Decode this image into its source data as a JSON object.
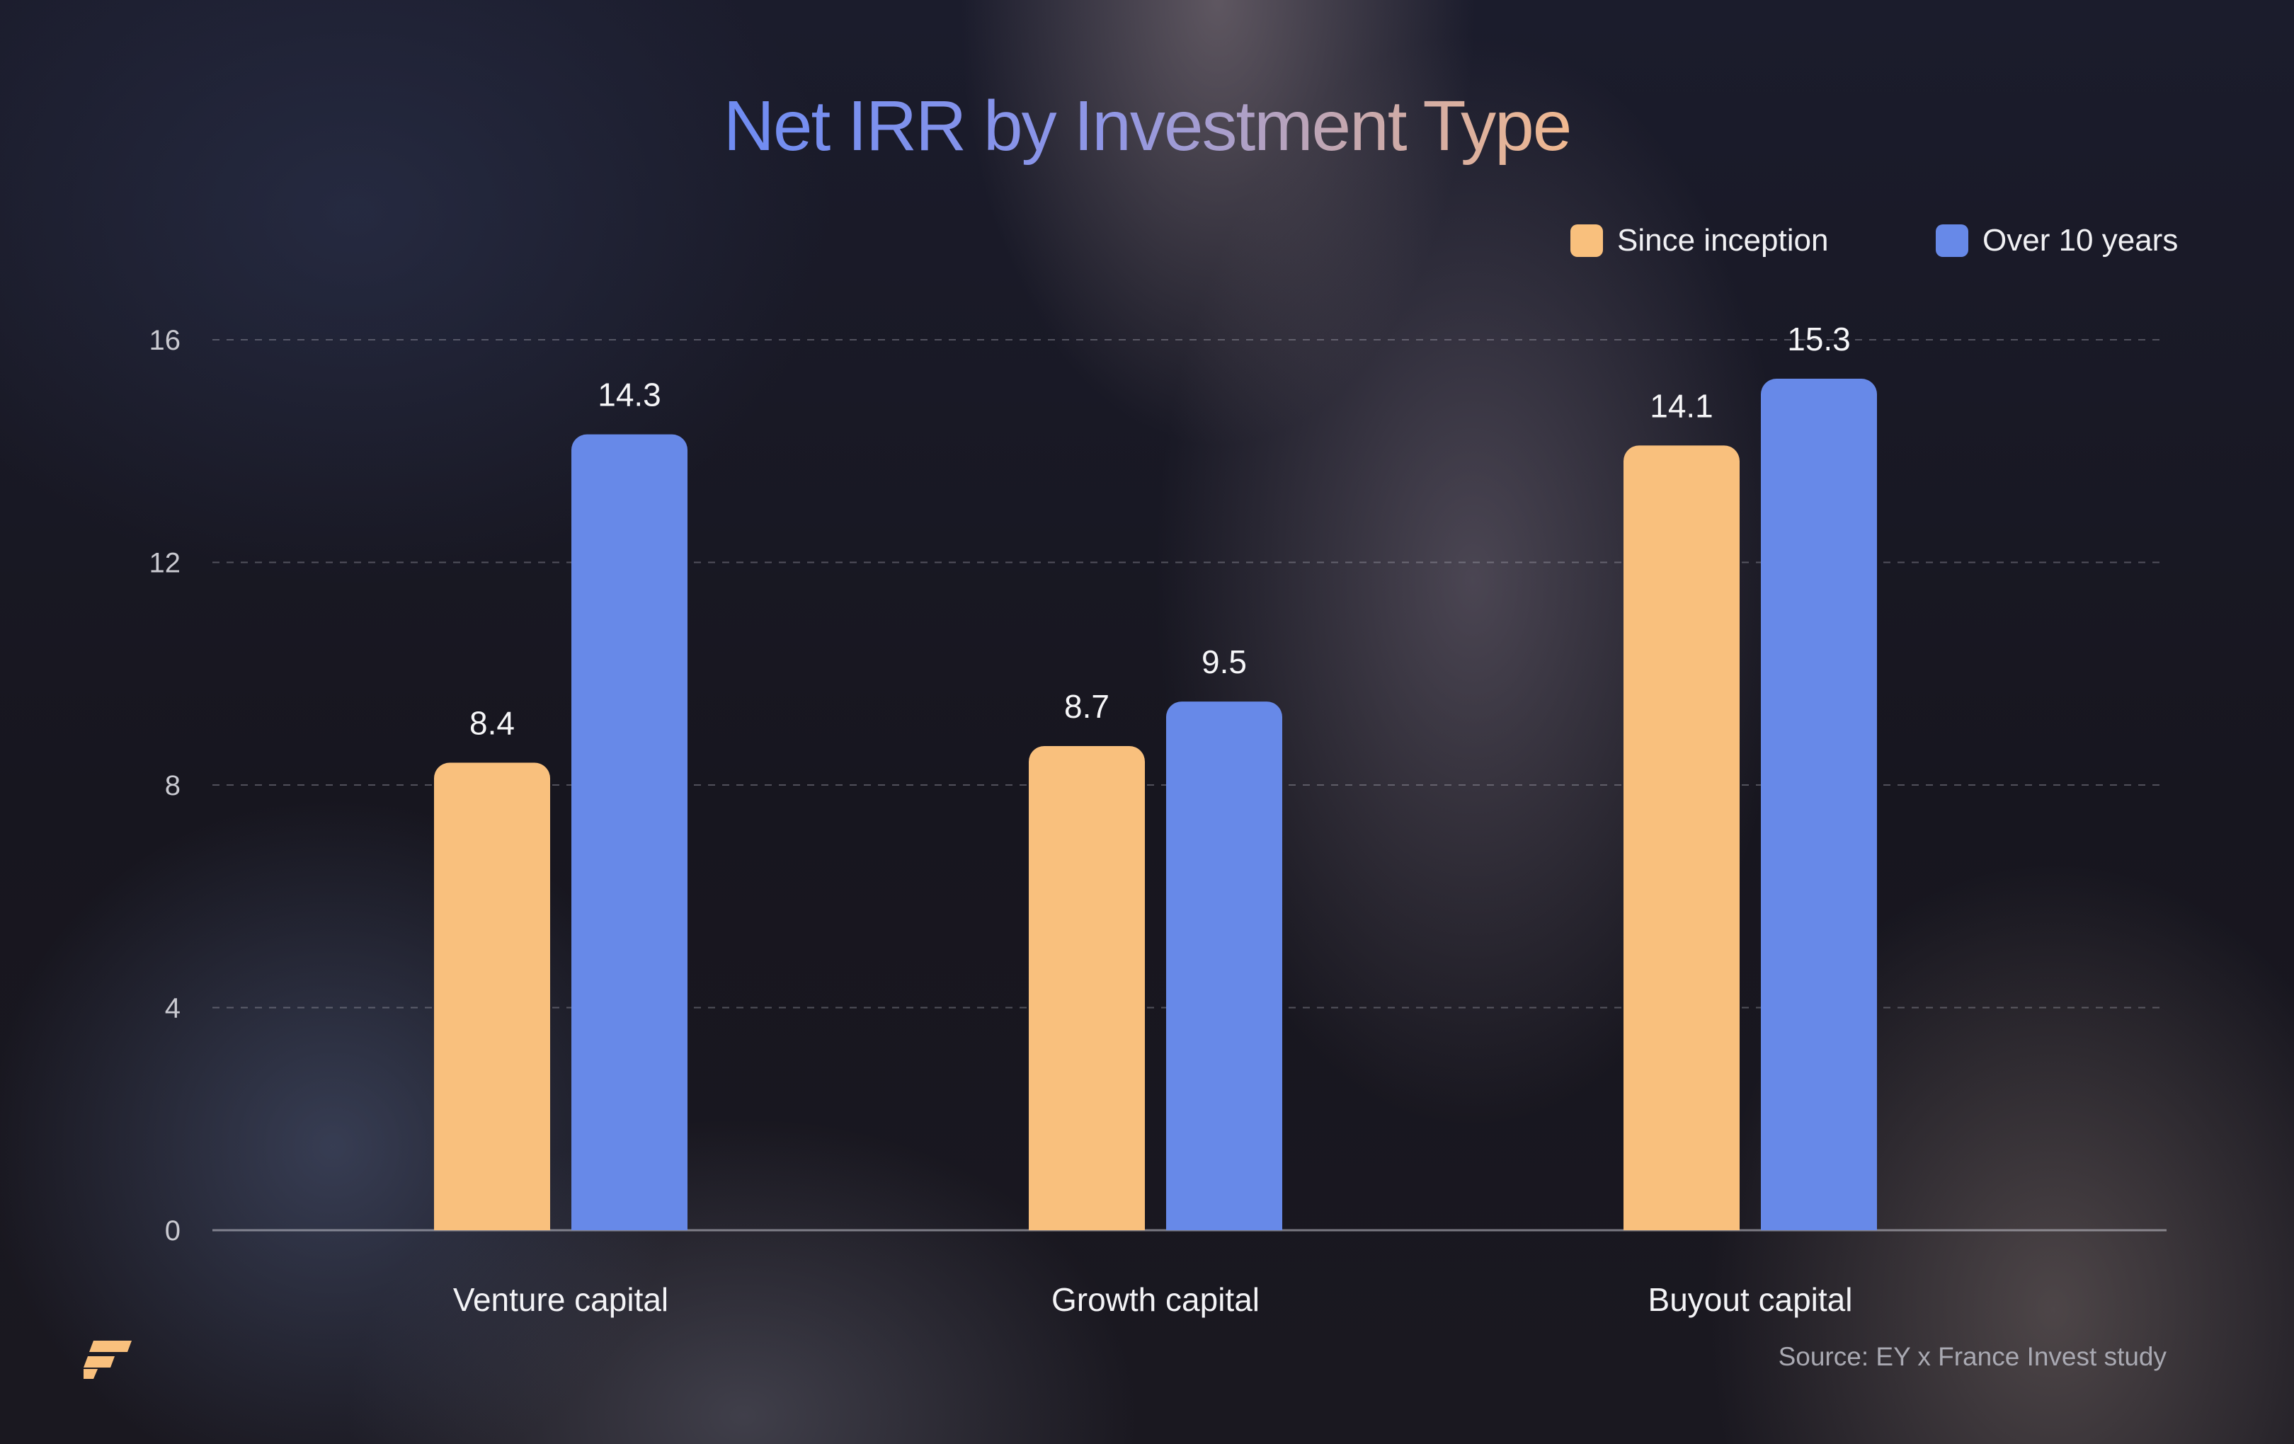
{
  "chart_data": {
    "type": "bar",
    "title": "Net IRR by Investment Type",
    "categories": [
      "Venture capital",
      "Growth capital",
      "Buyout capital"
    ],
    "series": [
      {
        "name": "Since inception",
        "values": [
          8.4,
          8.7,
          14.1
        ],
        "color": "#f9c07d"
      },
      {
        "name": "Over 10 years",
        "values": [
          14.3,
          9.5,
          15.3
        ],
        "color": "#6789e8"
      }
    ],
    "yticks": [
      0,
      4,
      8,
      12,
      16
    ],
    "ylim": [
      0,
      16
    ],
    "grid": true,
    "legend_position": "top-right",
    "value_labels": [
      "8.4",
      "14.3",
      "8.7",
      "9.5",
      "14.1",
      "15.3"
    ]
  },
  "source": "Source: EY x France Invest study",
  "logo": {
    "icon": "brand-logo-icon",
    "color": "#f9c07d"
  }
}
